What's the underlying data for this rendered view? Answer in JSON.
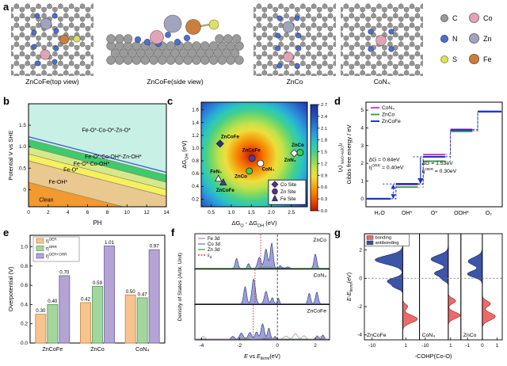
{
  "letters": {
    "a": "a",
    "b": "b",
    "c": "c",
    "d": "d",
    "e": "e",
    "f": "f",
    "g": "g"
  },
  "panel_a": {
    "captions": [
      "ZnCoFe(top view)",
      "ZnCoFe(side view)",
      "ZnCo",
      "CoN₄"
    ],
    "legend": [
      {
        "label": "C",
        "color": "#9b9b9b"
      },
      {
        "label": "Co",
        "color": "#e2a4b4"
      },
      {
        "label": "N",
        "color": "#4d6fd2"
      },
      {
        "label": "Zn",
        "color": "#a2a3bf"
      },
      {
        "label": "S",
        "color": "#dfe060"
      },
      {
        "label": "Fe",
        "color": "#c9803f"
      }
    ]
  },
  "chart_data": [
    {
      "panel": "b",
      "type": "area",
      "xlabel": "PH",
      "ylabel": "Potential V vs SHE",
      "xlim": [
        0,
        14
      ],
      "ylim": [
        -0.4,
        2.0
      ],
      "xticks": [
        0,
        2,
        4,
        6,
        8,
        10,
        12,
        14
      ],
      "yticks": [
        [
          0,
          "0"
        ],
        [
          0.5,
          "0.5"
        ],
        [
          1,
          "1.0"
        ],
        [
          1.5,
          "1.5"
        ]
      ],
      "slope": -0.0592,
      "boundaries": [
        0.17,
        0.67,
        0.83,
        1.0,
        1.17
      ],
      "blue_line": 1.23,
      "blue_line_color": "#3a66cc",
      "regions": [
        {
          "label": "Clean",
          "color": "#f2992f",
          "lx": 1.8,
          "ly": -0.24
        },
        {
          "label": "Fe-OH*",
          "color": "#e9c98f",
          "lx": 3.0,
          "ly": 0.17
        },
        {
          "label": "Fe-O*",
          "color": "#f6f05e",
          "lx": 4.3,
          "ly": 0.46
        },
        {
          "label": "Fe-O*-Co-OH*",
          "color": "#d6e98a",
          "lx": 6.4,
          "ly": 0.6
        },
        {
          "label": "Fe-O*-Co-OH*-Zn-OH*",
          "color": "#3dcb6b",
          "lx": 8.6,
          "ly": 0.76
        },
        {
          "label": "Fe-O*-Co-O*-Zn-O*",
          "color": "#c8f0e4",
          "lx": 7.9,
          "ly": 1.38
        }
      ]
    },
    {
      "panel": "c",
      "type": "heatmap",
      "xlim": [
        0.25,
        2.9
      ],
      "ylim": [
        0.08,
        1.72
      ],
      "xticks": [
        [
          0.5,
          "0.5"
        ],
        [
          1,
          "1.0"
        ],
        [
          1.5,
          "1.5"
        ],
        [
          2,
          "2.0"
        ],
        [
          2.5,
          "2.5"
        ]
      ],
      "yticks": [
        [
          0.2,
          "0.2"
        ],
        [
          0.4,
          "0.4"
        ],
        [
          0.6,
          "0.6"
        ],
        [
          0.8,
          "0.8"
        ],
        [
          1,
          "1.0"
        ],
        [
          1.2,
          "1.2"
        ],
        [
          1.4,
          "1.4"
        ],
        [
          1.6,
          "1.6"
        ]
      ],
      "xlabel_parts": [
        [
          "t",
          "ΔG"
        ],
        [
          "s",
          "O"
        ],
        [
          "t",
          " - ΔG"
        ],
        [
          "s",
          "OH"
        ],
        [
          "t",
          " (eV)"
        ]
      ],
      "ylabel_parts": [
        [
          "t",
          "ΔG"
        ],
        [
          "s",
          "OH"
        ],
        [
          "t",
          " (eV)"
        ]
      ],
      "center": [
        1.5,
        0.88
      ],
      "stops": [
        [
          0,
          "#b51800"
        ],
        [
          0.08,
          "#e84600"
        ],
        [
          0.16,
          "#f57d00"
        ],
        [
          0.24,
          "#f3ad18"
        ],
        [
          0.32,
          "#eedd3c"
        ],
        [
          0.4,
          "#c3e24a"
        ],
        [
          0.48,
          "#84d95e"
        ],
        [
          0.56,
          "#45cf8d"
        ],
        [
          0.63,
          "#2cc7bb"
        ],
        [
          0.71,
          "#2ba4da"
        ],
        [
          0.8,
          "#2b78d2"
        ],
        [
          0.89,
          "#2450bd"
        ],
        [
          1,
          "#1b2f9e"
        ]
      ],
      "points": [
        {
          "x": 0.72,
          "y": 1.07,
          "shape": "diamond",
          "color": "#332a8e",
          "label": "ZnCoFe",
          "lx": 0.97,
          "ly": 1.18
        },
        {
          "x": 1.52,
          "y": 0.84,
          "shape": "circle",
          "color": "#5b3a9b",
          "label": "ZnCoFe",
          "lx": 1.5,
          "ly": 0.97
        },
        {
          "x": 1.73,
          "y": 0.76,
          "shape": "circle",
          "color": "#ffffff",
          "label": "CoN₄",
          "lx": 1.92,
          "ly": 0.67
        },
        {
          "x": 1.45,
          "y": 0.64,
          "shape": "circle",
          "color": "#35d545",
          "label": "ZnCo",
          "lx": 1.24,
          "ly": 0.56
        },
        {
          "x": 0.68,
          "y": 0.52,
          "shape": "triangle",
          "color": "#ffffff",
          "label": "FeN₄",
          "lx": 0.62,
          "ly": 0.63
        },
        {
          "x": 0.8,
          "y": 0.46,
          "shape": "triangle",
          "color": "#4a3a95",
          "label": "ZnCoFe",
          "lx": 0.85,
          "ly": 0.34
        },
        {
          "x": 2.57,
          "y": 0.92,
          "shape": "diamond",
          "color": "#ffffff",
          "label": "ZnN₄",
          "lx": 2.47,
          "ly": 0.81
        },
        {
          "x": 2.72,
          "y": 0.93,
          "shape": "circle",
          "color": "#35d545",
          "label": "ZnCo",
          "lx": 2.66,
          "ly": 1.05
        }
      ],
      "site_legend": [
        {
          "shape": "diamond",
          "label": "Co Site"
        },
        {
          "shape": "circle",
          "label": "Zn Site"
        },
        {
          "shape": "triangle",
          "label": "Fe Site"
        }
      ],
      "legend_marker_color": "#5b2d9b"
    },
    {
      "panel": "cbar",
      "type": "colorbar",
      "vmin": 0,
      "vmax": 2.7,
      "ticks": [
        [
          0,
          "0.0"
        ],
        [
          0.3,
          "0.3"
        ],
        [
          0.6,
          "0.6"
        ],
        [
          0.9,
          "0.9"
        ],
        [
          1.2,
          "1.2"
        ],
        [
          1.5,
          "1.5"
        ],
        [
          1.8,
          "1.8"
        ],
        [
          2.1,
          "2.1"
        ],
        [
          2.4,
          "2.4"
        ],
        [
          2.7,
          "2.7"
        ]
      ],
      "label_parts": [
        [
          "t",
          "η"
        ],
        [
          "p",
          "OER+ORR"
        ],
        [
          "t",
          " (V)"
        ]
      ]
    },
    {
      "panel": "d",
      "type": "step",
      "ylabel": "Gibbs free energy / eV",
      "ylim": [
        -0.45,
        5.45
      ],
      "yticks": [
        [
          0,
          "0"
        ],
        [
          1,
          "1"
        ],
        [
          2,
          "2"
        ],
        [
          3,
          "3"
        ],
        [
          4,
          "4"
        ],
        [
          5,
          "5"
        ]
      ],
      "categories": [
        "H₂O",
        "OH*",
        "O*",
        "OOH*",
        "O₂"
      ],
      "series": [
        {
          "name": "CoN₄",
          "color": "#e03fd0",
          "values": [
            0,
            0.8,
            2.5,
            3.92,
            4.92
          ]
        },
        {
          "name": "ZnCo",
          "color": "#41a049",
          "values": [
            0,
            0.66,
            2.12,
            3.8,
            4.92
          ]
        },
        {
          "name": "ZnCoFe",
          "color": "#2136c2",
          "values": [
            0,
            0.84,
            2.37,
            3.88,
            4.92
          ]
        }
      ],
      "annotations": [
        {
          "line1": "ΔG = 0.84eV",
          "line2_parts": [
            [
              "t",
              "η"
            ],
            [
              "p",
              "ORR"
            ],
            [
              "t",
              " = 0.40eV"
            ]
          ],
          "xf": 0.02,
          "y": 2.12
        },
        {
          "line1": "ΔG = 1.53eV",
          "line2_parts": [
            [
              "t",
              "η"
            ],
            [
              "p",
              "OER"
            ],
            [
              "t",
              " = 0.30eV"
            ]
          ],
          "xf": 0.41,
          "y": 1.92
        }
      ]
    },
    {
      "panel": "e",
      "type": "bar",
      "ylabel": "Overpotential (V)",
      "ylim": [
        0,
        1.12
      ],
      "yticks": [
        [
          0,
          "0.0"
        ],
        [
          0.2,
          "0.2"
        ],
        [
          0.4,
          "0.4"
        ],
        [
          0.6,
          "0.6"
        ],
        [
          0.8,
          "0.8"
        ],
        [
          1,
          "1.0"
        ]
      ],
      "categories": [
        "ZnCoFe",
        "ZnCo",
        "CoN₄"
      ],
      "series": [
        {
          "label_parts": [
            [
              "t",
              "η"
            ],
            [
              "p",
              "OER"
            ]
          ],
          "color": "#f7c38e",
          "edge": "#c98f4e",
          "values": [
            0.3,
            0.42,
            0.5
          ]
        },
        {
          "label_parts": [
            [
              "t",
              "η"
            ],
            [
              "p",
              "ORR"
            ]
          ],
          "color": "#a3d69e",
          "edge": "#5f9e5f",
          "values": [
            0.4,
            0.59,
            0.47
          ]
        },
        {
          "label_parts": [
            [
              "t",
              "η"
            ],
            [
              "p",
              "OER+ORR"
            ]
          ],
          "color": "#b3a4d4",
          "edge": "#7a68a8",
          "values": [
            0.7,
            1.01,
            0.97
          ]
        }
      ]
    },
    {
      "panel": "f",
      "type": "dos",
      "ylabel": "Density of States (Arbt. Unit)",
      "xlabel_parts": [
        [
          "i",
          "E"
        ],
        [
          "t",
          " vs "
        ],
        [
          "i",
          "E"
        ],
        [
          "si",
          "fermi"
        ],
        [
          "t",
          "(eV)"
        ]
      ],
      "xlim": [
        -4.35,
        2.75
      ],
      "xticks": [
        [
          -4,
          "-4"
        ],
        [
          -2,
          "-2"
        ],
        [
          0,
          "0"
        ],
        [
          2,
          "2"
        ]
      ],
      "legend": [
        {
          "label": "Fe 3d",
          "color": "#bb85b5"
        },
        {
          "label": "Co 3d",
          "color": "#7d83c5"
        },
        {
          "label": "Zn 3d",
          "color": "#4a9e4a"
        },
        {
          "label_parts": [
            [
              "t",
              "ε"
            ],
            [
              "s",
              "d"
            ]
          ],
          "color": "#cc2222",
          "dashed": true
        }
      ],
      "fill_color": "#8a90cf",
      "fill_stroke": "#39408f",
      "fermi_color": "#333333",
      "ed_color": "#cc2222",
      "panels": [
        {
          "label": "ZnCo",
          "ed": -0.88,
          "co3d": [
            [
              -2.15,
              0.36,
              0.07
            ],
            [
              -1.52,
              0.17,
              0.06
            ],
            [
              -0.95,
              0.4,
              0.09
            ],
            [
              -0.6,
              0.7,
              0.085
            ],
            [
              -0.3,
              0.92,
              0.075
            ],
            [
              0.15,
              0.1,
              0.06
            ],
            [
              0.55,
              0.05,
              0.09
            ],
            [
              2.0,
              0.52,
              0.07
            ]
          ],
          "zn3d": [
            [
              -0.55,
              0.05,
              0.25
            ],
            [
              0.2,
              0.03,
              0.2
            ]
          ],
          "fe3d": []
        },
        {
          "label": "CoN₄",
          "ed": -1.18,
          "co3d": [
            [
              -1.7,
              0.62,
              0.075
            ],
            [
              -1.25,
              0.9,
              0.09
            ],
            [
              -0.6,
              0.45,
              0.085
            ],
            [
              -0.27,
              0.22,
              0.06
            ],
            [
              0.05,
              0.2,
              0.05
            ],
            [
              1.68,
              0.38,
              0.065
            ],
            [
              2.08,
              0.42,
              0.07
            ]
          ],
          "zn3d": [],
          "fe3d": []
        },
        {
          "label": "ZnCoFe",
          "ed": -1.28,
          "co3d": [
            [
              -2.35,
              0.1,
              0.08
            ],
            [
              -1.9,
              0.22,
              0.09
            ],
            [
              -1.45,
              0.24,
              0.09
            ],
            [
              -1.1,
              0.26,
              0.08
            ],
            [
              -0.78,
              0.55,
              0.085
            ],
            [
              -0.45,
              0.4,
              0.07
            ],
            [
              -0.12,
              0.1,
              0.05
            ],
            [
              2.1,
              0.12,
              0.06
            ],
            [
              2.4,
              0.15,
              0.06
            ]
          ],
          "zn3d": [
            [
              -0.5,
              0.04,
              0.3
            ]
          ],
          "fe3d": [
            [
              -3.9,
              0.1,
              0.07
            ],
            [
              -1.75,
              0.07,
              0.15
            ],
            [
              -0.6,
              0.06,
              0.12
            ],
            [
              0.45,
              0.1,
              0.12
            ],
            [
              0.95,
              0.2,
              0.1
            ],
            [
              1.4,
              0.12,
              0.09
            ],
            [
              2.3,
              0.1,
              0.07
            ]
          ]
        }
      ]
    },
    {
      "panel": "g",
      "type": "cohp",
      "xlabel": "-COHP(Co-O)",
      "ylabel_parts": [
        [
          "i",
          "E"
        ],
        [
          "t",
          "-"
        ],
        [
          "i",
          "E"
        ],
        [
          "si",
          "fermi"
        ],
        [
          "t",
          "(eV)"
        ]
      ],
      "ylim": [
        -4.35,
        3.15
      ],
      "yticks": [
        [
          2,
          "2"
        ],
        [
          0,
          "0"
        ],
        [
          -2,
          "-2"
        ],
        [
          -4,
          "-4"
        ]
      ],
      "legend": [
        {
          "label": "bonding",
          "color": "#ee6a6a"
        },
        {
          "label": "antibonding",
          "color": "#3a4fa3"
        }
      ],
      "bond_color": "#ee6a6a",
      "bond_stroke": "#8f1f1f",
      "anti_color": "#3d55a8",
      "anti_stroke": "#15205e",
      "panels": [
        {
          "label": "ZnCoFe",
          "xlim": [
            -12.5,
            5.5
          ],
          "xticks": [
            [
              -10,
              "-10"
            ],
            [
              1,
              "1"
            ]
          ],
          "anti": [
            [
              1.3,
              9.0,
              0.3
            ],
            [
              -0.2,
              5.0,
              0.22
            ],
            [
              -0.62,
              2.2,
              0.15
            ]
          ],
          "bond": [
            [
              -2.0,
              1.6,
              0.18
            ],
            [
              -2.88,
              4.8,
              0.26
            ]
          ]
        },
        {
          "label": "CoN₄",
          "xlim": [
            -12.5,
            5.5
          ],
          "xticks": [
            [
              -10,
              "-10"
            ],
            [
              1,
              "1"
            ]
          ],
          "anti": [
            [
              1.35,
              7.5,
              0.28
            ],
            [
              0.35,
              6.0,
              0.22
            ],
            [
              -0.1,
              1.8,
              0.14
            ]
          ],
          "bond": [
            [
              -1.6,
              3.2,
              0.18
            ],
            [
              -2.62,
              5.2,
              0.22
            ]
          ]
        },
        {
          "label": "ZnCo",
          "xlim": [
            -1.45,
            1.35
          ],
          "xticks": [
            [
              -1,
              "-1"
            ],
            [
              0,
              "0"
            ],
            [
              1,
              "1"
            ]
          ],
          "anti": [
            [
              1.2,
              0.95,
              0.28
            ],
            [
              0.3,
              1.0,
              0.22
            ]
          ],
          "bond": [
            [
              -1.8,
              0.55,
              0.2
            ],
            [
              -2.7,
              0.88,
              0.26
            ]
          ]
        }
      ]
    }
  ]
}
